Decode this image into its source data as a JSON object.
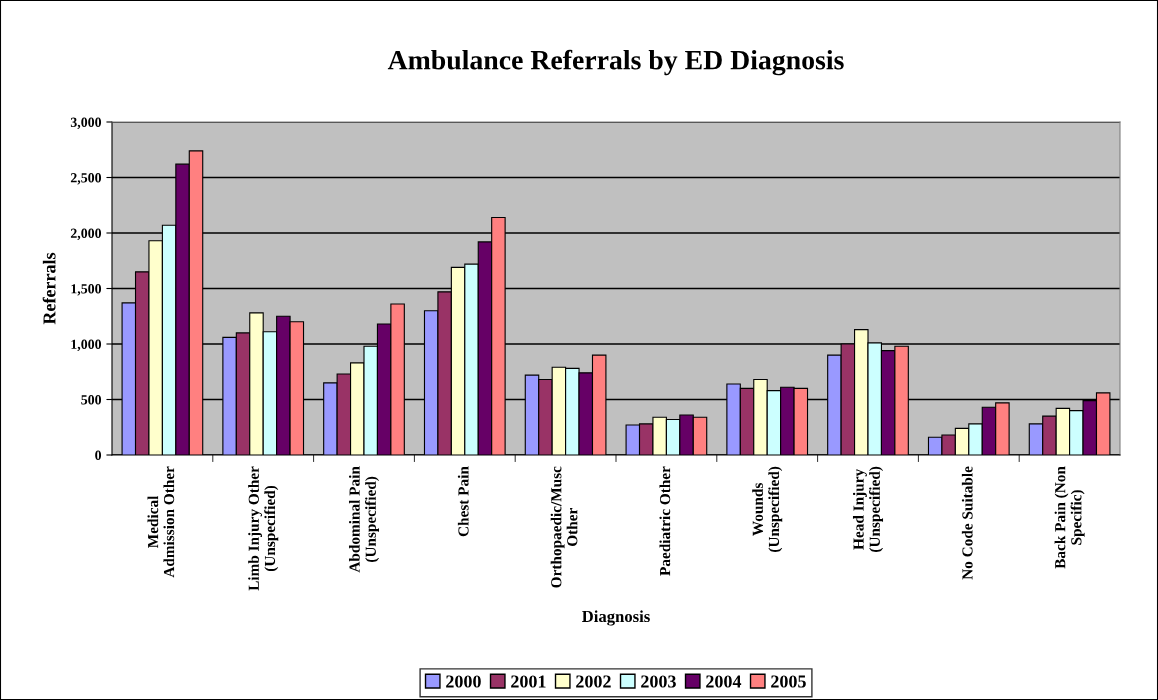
{
  "chart_data": {
    "type": "bar",
    "title": "Ambulance Referrals by ED Diagnosis",
    "xlabel": "Diagnosis",
    "ylabel": "Referrals",
    "categories": [
      "Medical\nAdmission Other",
      "Limb Injury Other\n(Unspecified)",
      "Abdominal Pain\n(Unspecified)",
      "Chest Pain",
      "Orthopaedic/Musc\nOther",
      "Paediatric Other",
      "Wounds\n(Unspecified)",
      "Head Injury\n(Unspecified)",
      "No Code Suitable",
      "Back Pain (Non\nSpecific)"
    ],
    "series": [
      {
        "name": "2000",
        "color": "#9999ff",
        "values": [
          1370,
          1060,
          650,
          1300,
          720,
          270,
          640,
          900,
          160,
          280
        ]
      },
      {
        "name": "2001",
        "color": "#993366",
        "values": [
          1650,
          1100,
          730,
          1470,
          680,
          280,
          600,
          1000,
          180,
          350
        ]
      },
      {
        "name": "2002",
        "color": "#ffffcc",
        "values": [
          1930,
          1280,
          830,
          1690,
          790,
          340,
          680,
          1130,
          240,
          420
        ]
      },
      {
        "name": "2003",
        "color": "#ccffff",
        "values": [
          2070,
          1110,
          980,
          1720,
          780,
          320,
          580,
          1010,
          280,
          400
        ]
      },
      {
        "name": "2004",
        "color": "#660066",
        "values": [
          2620,
          1250,
          1180,
          1920,
          740,
          360,
          610,
          940,
          430,
          490
        ]
      },
      {
        "name": "2005",
        "color": "#ff8080",
        "values": [
          2740,
          1200,
          1360,
          2140,
          900,
          340,
          600,
          980,
          470,
          560
        ]
      }
    ],
    "ylim": [
      0,
      3000
    ],
    "yticks": [
      0,
      500,
      {
        "value": 1000,
        "label": "1,000"
      },
      {
        "value": 1500,
        "label": "1,500"
      },
      {
        "value": 2000,
        "label": "2,000"
      },
      {
        "value": 2500,
        "label": "2,500"
      },
      {
        "value": 3000,
        "label": "3,000"
      }
    ],
    "grid": "y",
    "legend": "bottom"
  }
}
